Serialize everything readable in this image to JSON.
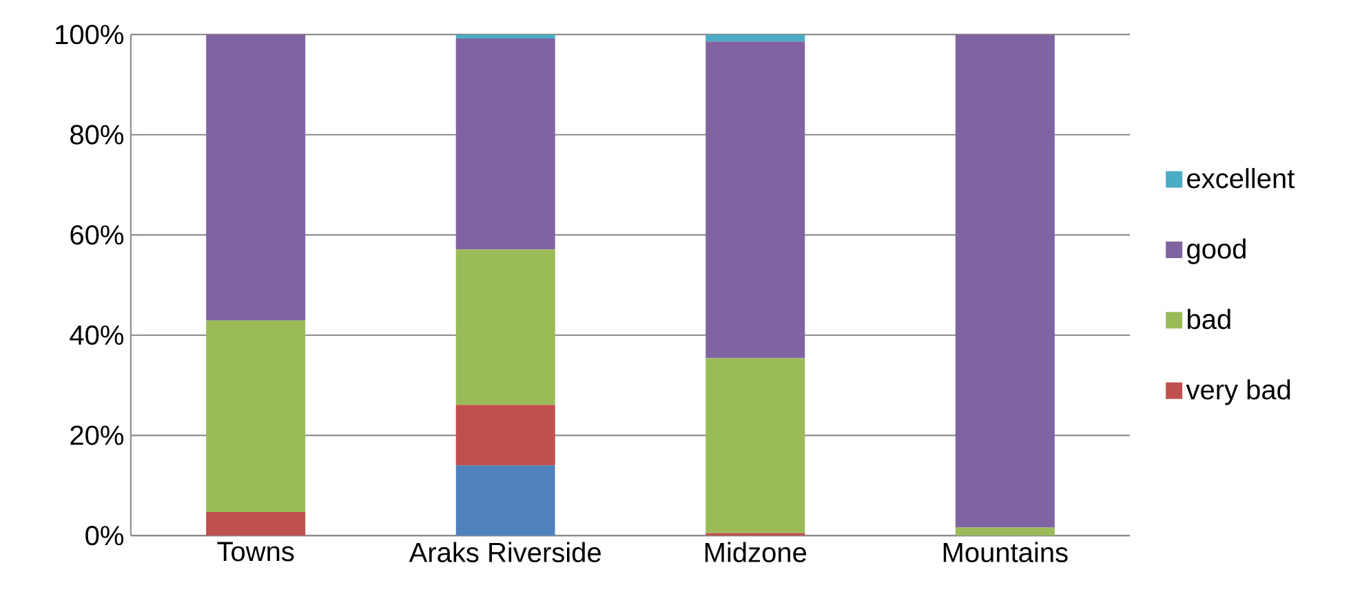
{
  "chart_data": {
    "type": "bar",
    "stacked": true,
    "categories": [
      "Towns",
      "Araks Riverside",
      "Midzone",
      "Mountains"
    ],
    "series": [
      {
        "color": "#4f81bd",
        "values": [
          0,
          14.0,
          0,
          0
        ]
      },
      {
        "name": "very bad",
        "color": "#c0504d",
        "values": [
          4.7,
          12.1,
          0.5,
          0
        ]
      },
      {
        "name": "bad",
        "color": "#9bbb59",
        "values": [
          38.2,
          31.0,
          34.9,
          1.6
        ]
      },
      {
        "name": "good",
        "color": "#8064a2",
        "values": [
          57.1,
          42.1,
          63.2,
          98.4
        ]
      },
      {
        "name": "excellent",
        "color": "#4bacc6",
        "values": [
          0,
          0.8,
          1.4,
          0
        ]
      }
    ],
    "ylim": [
      0,
      100
    ],
    "yticks": [
      {
        "value": 0,
        "label": "0%"
      },
      {
        "value": 20,
        "label": "20%"
      },
      {
        "value": 40,
        "label": "40%"
      },
      {
        "value": 60,
        "label": "60%"
      },
      {
        "value": 80,
        "label": "80%"
      },
      {
        "value": 100,
        "label": "100%"
      }
    ],
    "grid": "y",
    "legend": "right"
  }
}
